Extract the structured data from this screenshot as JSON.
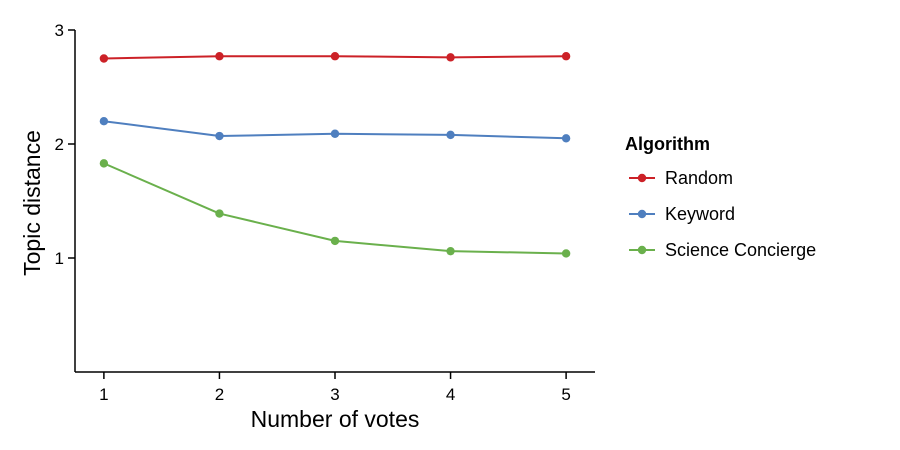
{
  "chart_data": {
    "type": "line",
    "title": "",
    "xlabel": "Number of votes",
    "ylabel": "Topic distance",
    "x": [
      1,
      2,
      3,
      4,
      5
    ],
    "xlim": [
      0.75,
      5.25
    ],
    "ylim": [
      0,
      3
    ],
    "x_ticks": [
      1,
      2,
      3,
      4,
      5
    ],
    "y_ticks": [
      1,
      2,
      3
    ],
    "grid": false,
    "legend": {
      "title": "Algorithm",
      "placement": "right"
    },
    "series": [
      {
        "name": "Random",
        "color": "#cc2127",
        "values": [
          2.75,
          2.77,
          2.77,
          2.76,
          2.77
        ]
      },
      {
        "name": "Keyword",
        "color": "#4f7fbf",
        "values": [
          2.2,
          2.07,
          2.09,
          2.08,
          2.05
        ]
      },
      {
        "name": "Science Concierge",
        "color": "#6ab04c",
        "values": [
          1.83,
          1.39,
          1.15,
          1.06,
          1.04
        ]
      }
    ]
  }
}
